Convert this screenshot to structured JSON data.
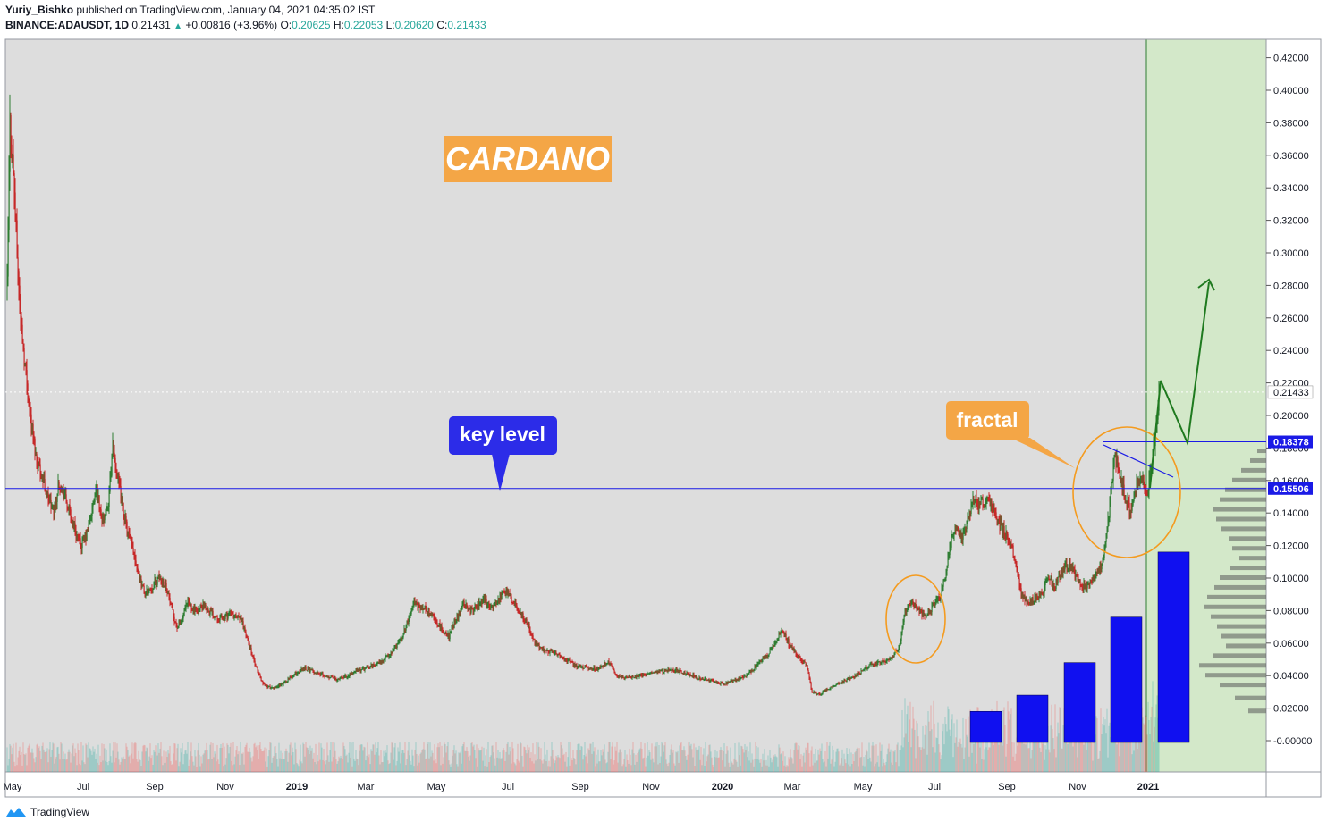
{
  "header": {
    "author": "Yuriy_Bishko",
    "published_text": "published on TradingView.com, January 04, 2021 04:35:02 IST",
    "symbol": "BINANCE:ADAUSDT, 1D",
    "last": "0.21431",
    "change": "+0.00816 (+3.96%)",
    "o_label": "O:",
    "o": "0.20625",
    "h_label": "H:",
    "h": "0.22053",
    "l_label": "L:",
    "l": "0.20620",
    "c_label": "C:",
    "c": "0.21433"
  },
  "footer": {
    "brand": "TradingView"
  },
  "annotations": {
    "title": "CARDANO",
    "key_level": "key level",
    "fractal": "fractal"
  },
  "colors": {
    "plot_bg": "#dddddd",
    "projection_bg": "#d3e8c9",
    "up_candle": "#2e7d32",
    "down_candle": "#c62828",
    "key_line": "#1a1ae6",
    "label_orange": "#f4a646",
    "label_blue": "#2c2ce8",
    "bars_blue": "#1010f0",
    "projection_arrow": "#1f7a1f"
  },
  "chart_data": {
    "type": "candlestick",
    "symbol": "BINANCE:ADAUSDT",
    "interval": "1D",
    "ylim": [
      -0.01,
      0.43
    ],
    "y_ticks": [
      "0.42000",
      "0.40000",
      "0.38000",
      "0.36000",
      "0.34000",
      "0.32000",
      "0.30000",
      "0.28000",
      "0.26000",
      "0.24000",
      "0.22000",
      "0.20000",
      "0.18000",
      "0.16000",
      "0.14000",
      "0.12000",
      "0.10000",
      "0.08000",
      "0.06000",
      "0.04000",
      "0.02000",
      "-0.00000"
    ],
    "x_ticks": [
      "May",
      "Jul",
      "Sep",
      "Nov",
      "2019",
      "Mar",
      "May",
      "Jul",
      "Sep",
      "Nov",
      "2020",
      "Mar",
      "May",
      "Jul",
      "Sep",
      "Nov",
      "2021"
    ],
    "price_markers": [
      {
        "label": "0.21433",
        "value": 0.21433,
        "style": "dotted-current"
      },
      {
        "label": "0.18378",
        "value": 0.18378,
        "style": "resistance"
      },
      {
        "label": "0.15506",
        "value": 0.15506,
        "style": "key-level"
      }
    ],
    "price_path": [
      [
        0,
        0.28
      ],
      [
        3,
        0.38
      ],
      [
        7,
        0.35
      ],
      [
        11,
        0.3
      ],
      [
        15,
        0.26
      ],
      [
        20,
        0.23
      ],
      [
        26,
        0.2
      ],
      [
        32,
        0.175
      ],
      [
        38,
        0.165
      ],
      [
        45,
        0.15
      ],
      [
        52,
        0.14
      ],
      [
        58,
        0.16
      ],
      [
        64,
        0.15
      ],
      [
        70,
        0.14
      ],
      [
        76,
        0.13
      ],
      [
        82,
        0.12
      ],
      [
        88,
        0.125
      ],
      [
        94,
        0.14
      ],
      [
        100,
        0.155
      ],
      [
        106,
        0.135
      ],
      [
        112,
        0.14
      ],
      [
        118,
        0.18
      ],
      [
        124,
        0.16
      ],
      [
        130,
        0.14
      ],
      [
        136,
        0.125
      ],
      [
        142,
        0.115
      ],
      [
        148,
        0.1
      ],
      [
        154,
        0.09
      ],
      [
        162,
        0.095
      ],
      [
        170,
        0.1
      ],
      [
        178,
        0.095
      ],
      [
        184,
        0.08
      ],
      [
        190,
        0.07
      ],
      [
        196,
        0.075
      ],
      [
        202,
        0.085
      ],
      [
        210,
        0.08
      ],
      [
        220,
        0.082
      ],
      [
        230,
        0.078
      ],
      [
        240,
        0.075
      ],
      [
        250,
        0.078
      ],
      [
        262,
        0.074
      ],
      [
        270,
        0.06
      ],
      [
        278,
        0.045
      ],
      [
        286,
        0.035
      ],
      [
        296,
        0.032
      ],
      [
        308,
        0.035
      ],
      [
        320,
        0.04
      ],
      [
        332,
        0.045
      ],
      [
        344,
        0.042
      ],
      [
        356,
        0.04
      ],
      [
        368,
        0.038
      ],
      [
        380,
        0.04
      ],
      [
        392,
        0.043
      ],
      [
        404,
        0.045
      ],
      [
        416,
        0.048
      ],
      [
        428,
        0.053
      ],
      [
        438,
        0.06
      ],
      [
        446,
        0.07
      ],
      [
        454,
        0.085
      ],
      [
        462,
        0.082
      ],
      [
        470,
        0.08
      ],
      [
        478,
        0.075
      ],
      [
        486,
        0.068
      ],
      [
        494,
        0.064
      ],
      [
        502,
        0.075
      ],
      [
        510,
        0.085
      ],
      [
        518,
        0.08
      ],
      [
        526,
        0.083
      ],
      [
        534,
        0.086
      ],
      [
        542,
        0.082
      ],
      [
        550,
        0.088
      ],
      [
        558,
        0.093
      ],
      [
        566,
        0.085
      ],
      [
        574,
        0.078
      ],
      [
        582,
        0.072
      ],
      [
        590,
        0.06
      ],
      [
        600,
        0.056
      ],
      [
        612,
        0.054
      ],
      [
        624,
        0.05
      ],
      [
        636,
        0.046
      ],
      [
        648,
        0.045
      ],
      [
        660,
        0.044
      ],
      [
        672,
        0.048
      ],
      [
        676,
        0.045
      ],
      [
        682,
        0.04
      ],
      [
        694,
        0.039
      ],
      [
        706,
        0.04
      ],
      [
        718,
        0.041
      ],
      [
        730,
        0.043
      ],
      [
        742,
        0.044
      ],
      [
        754,
        0.042
      ],
      [
        766,
        0.04
      ],
      [
        778,
        0.038
      ],
      [
        790,
        0.036
      ],
      [
        802,
        0.035
      ],
      [
        814,
        0.037
      ],
      [
        826,
        0.04
      ],
      [
        838,
        0.046
      ],
      [
        850,
        0.053
      ],
      [
        860,
        0.06
      ],
      [
        866,
        0.068
      ],
      [
        874,
        0.06
      ],
      [
        884,
        0.052
      ],
      [
        894,
        0.046
      ],
      [
        900,
        0.03
      ],
      [
        908,
        0.028
      ],
      [
        918,
        0.032
      ],
      [
        930,
        0.035
      ],
      [
        942,
        0.038
      ],
      [
        954,
        0.042
      ],
      [
        964,
        0.046
      ],
      [
        976,
        0.048
      ],
      [
        988,
        0.05
      ],
      [
        998,
        0.058
      ],
      [
        1004,
        0.08
      ],
      [
        1012,
        0.085
      ],
      [
        1020,
        0.08
      ],
      [
        1028,
        0.077
      ],
      [
        1036,
        0.083
      ],
      [
        1044,
        0.09
      ],
      [
        1050,
        0.105
      ],
      [
        1056,
        0.125
      ],
      [
        1062,
        0.13
      ],
      [
        1068,
        0.125
      ],
      [
        1074,
        0.135
      ],
      [
        1080,
        0.15
      ],
      [
        1088,
        0.145
      ],
      [
        1096,
        0.148
      ],
      [
        1104,
        0.14
      ],
      [
        1112,
        0.13
      ],
      [
        1120,
        0.125
      ],
      [
        1128,
        0.11
      ],
      [
        1134,
        0.09
      ],
      [
        1142,
        0.085
      ],
      [
        1150,
        0.088
      ],
      [
        1158,
        0.09
      ],
      [
        1164,
        0.1
      ],
      [
        1172,
        0.095
      ],
      [
        1180,
        0.105
      ],
      [
        1188,
        0.108
      ],
      [
        1196,
        0.1
      ],
      [
        1204,
        0.095
      ],
      [
        1212,
        0.097
      ],
      [
        1220,
        0.105
      ],
      [
        1226,
        0.11
      ],
      [
        1232,
        0.14
      ],
      [
        1238,
        0.175
      ],
      [
        1244,
        0.165
      ],
      [
        1250,
        0.15
      ],
      [
        1256,
        0.14
      ],
      [
        1262,
        0.155
      ],
      [
        1268,
        0.165
      ],
      [
        1274,
        0.15
      ],
      [
        1280,
        0.17
      ],
      [
        1284,
        0.19
      ],
      [
        1288,
        0.214
      ]
    ],
    "volume_profile_bars": [
      {
        "price": 0.018,
        "width": 20
      },
      {
        "price": 0.026,
        "width": 35
      },
      {
        "price": 0.034,
        "width": 52
      },
      {
        "price": 0.04,
        "width": 68
      },
      {
        "price": 0.046,
        "width": 75
      },
      {
        "price": 0.052,
        "width": 60
      },
      {
        "price": 0.058,
        "width": 45
      },
      {
        "price": 0.064,
        "width": 50
      },
      {
        "price": 0.07,
        "width": 55
      },
      {
        "price": 0.076,
        "width": 62
      },
      {
        "price": 0.082,
        "width": 70
      },
      {
        "price": 0.088,
        "width": 66
      },
      {
        "price": 0.094,
        "width": 58
      },
      {
        "price": 0.1,
        "width": 52
      },
      {
        "price": 0.106,
        "width": 40
      },
      {
        "price": 0.112,
        "width": 30
      },
      {
        "price": 0.118,
        "width": 38
      },
      {
        "price": 0.124,
        "width": 42
      },
      {
        "price": 0.13,
        "width": 50
      },
      {
        "price": 0.136,
        "width": 56
      },
      {
        "price": 0.142,
        "width": 60
      },
      {
        "price": 0.148,
        "width": 52
      },
      {
        "price": 0.154,
        "width": 46
      },
      {
        "price": 0.16,
        "width": 38
      },
      {
        "price": 0.166,
        "width": 28
      },
      {
        "price": 0.172,
        "width": 18
      },
      {
        "price": 0.178,
        "width": 10
      }
    ],
    "volume_comparison_bars": [
      0.018,
      0.028,
      0.048,
      0.076,
      0.116
    ],
    "projection_path": [
      [
        0.155,
        0.22
      ],
      [
        0.183,
        0.285
      ]
    ]
  }
}
